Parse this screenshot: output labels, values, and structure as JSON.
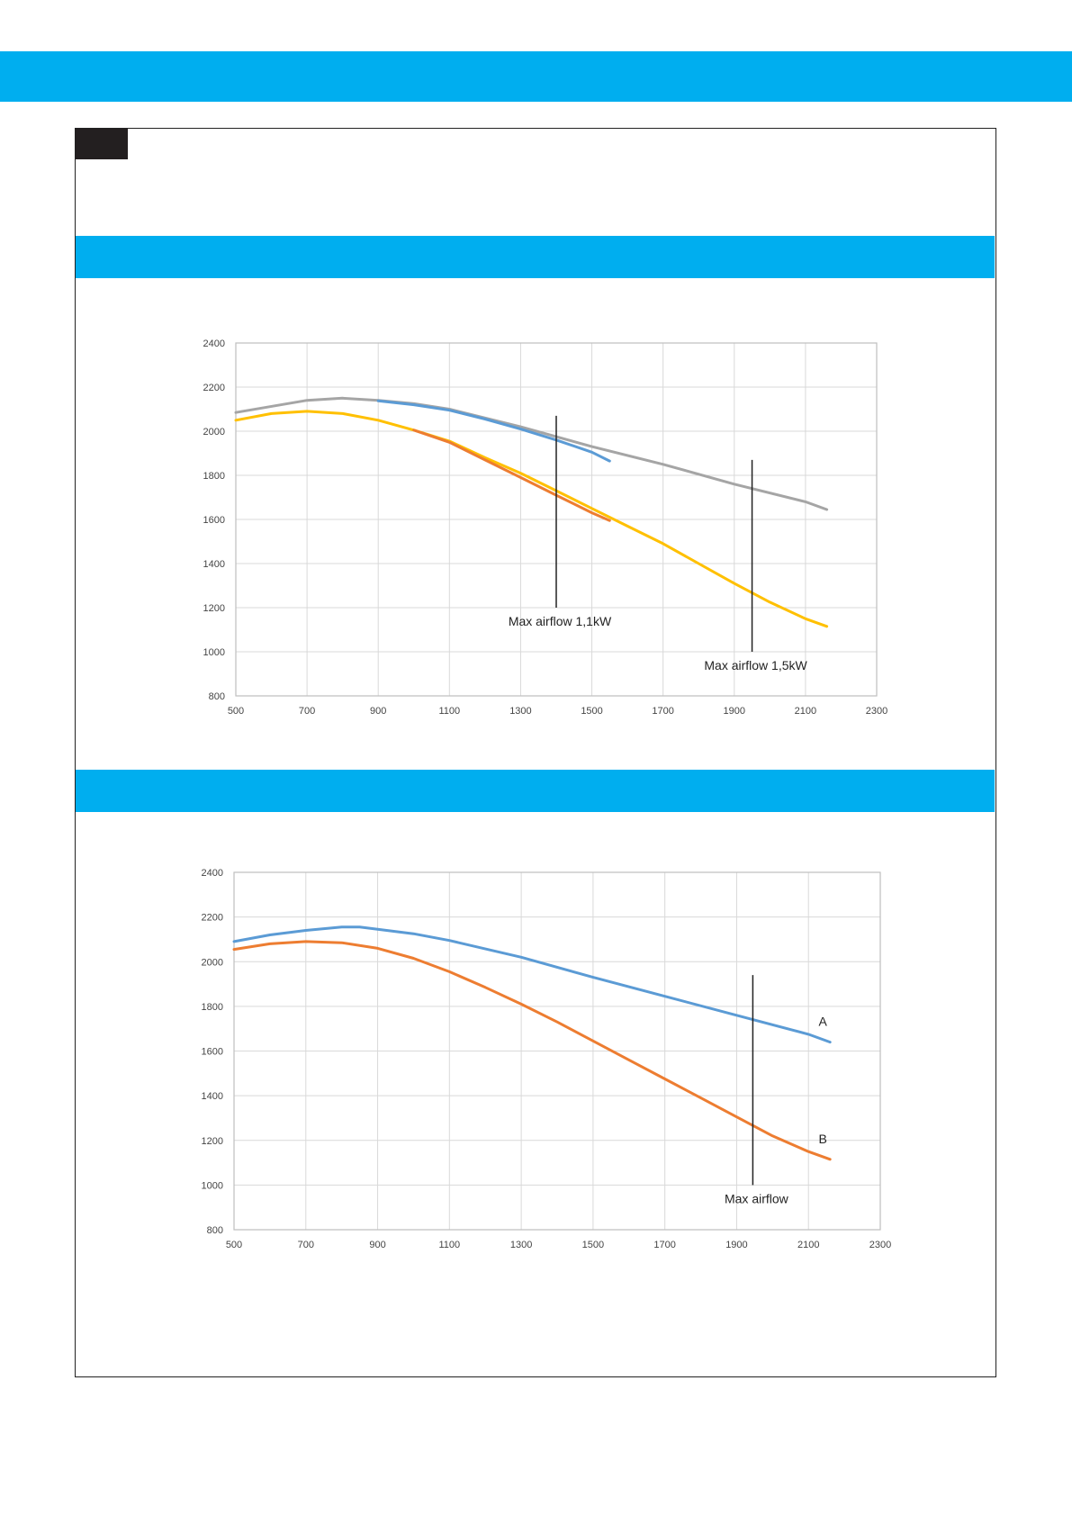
{
  "colors": {
    "accent": "#00aeef",
    "dark_tab": "#231f20",
    "grid": "#d9d9d9",
    "marker": "#222222"
  },
  "chart_data": [
    {
      "type": "line",
      "xlim": [
        500,
        2300
      ],
      "ylim": [
        800,
        2400
      ],
      "x_ticks": [
        "500",
        "700",
        "900",
        "1100",
        "1300",
        "1500",
        "1700",
        "1900",
        "2100",
        "2300"
      ],
      "y_ticks": [
        "2400",
        "2200",
        "2000",
        "1800",
        "1600",
        "1400",
        "1200",
        "1000",
        "800"
      ],
      "grid": true,
      "series": [
        {
          "color": "#a5a5a5",
          "points": [
            [
              500,
              2085
            ],
            [
              700,
              2140
            ],
            [
              800,
              2150
            ],
            [
              900,
              2140
            ],
            [
              1000,
              2125
            ],
            [
              1100,
              2100
            ],
            [
              1300,
              2020
            ],
            [
              1500,
              1930
            ],
            [
              1700,
              1850
            ],
            [
              1900,
              1760
            ],
            [
              2100,
              1680
            ],
            [
              2160,
              1645
            ]
          ]
        },
        {
          "color": "#5b9bd5",
          "points": [
            [
              900,
              2138
            ],
            [
              1000,
              2120
            ],
            [
              1100,
              2095
            ],
            [
              1200,
              2055
            ],
            [
              1300,
              2010
            ],
            [
              1400,
              1960
            ],
            [
              1500,
              1905
            ],
            [
              1550,
              1865
            ]
          ]
        },
        {
          "color": "#ffc000",
          "points": [
            [
              500,
              2050
            ],
            [
              600,
              2080
            ],
            [
              700,
              2090
            ],
            [
              800,
              2080
            ],
            [
              900,
              2050
            ],
            [
              1000,
              2005
            ],
            [
              1100,
              1955
            ],
            [
              1200,
              1880
            ],
            [
              1300,
              1810
            ],
            [
              1400,
              1730
            ],
            [
              1500,
              1650
            ],
            [
              1600,
              1570
            ],
            [
              1700,
              1490
            ],
            [
              1800,
              1400
            ],
            [
              1900,
              1310
            ],
            [
              2000,
              1225
            ],
            [
              2100,
              1150
            ],
            [
              2160,
              1115
            ]
          ]
        },
        {
          "color": "#ed7d31",
          "points": [
            [
              1000,
              2005
            ],
            [
              1100,
              1950
            ],
            [
              1200,
              1870
            ],
            [
              1300,
              1790
            ],
            [
              1400,
              1710
            ],
            [
              1500,
              1630
            ],
            [
              1550,
              1595
            ]
          ]
        }
      ],
      "annotations": [
        {
          "text": "Max airflow 1,1kW",
          "x": 1400,
          "y_from": 1200,
          "y_to": 2070
        },
        {
          "text": "Max airflow 1,5kW",
          "x": 1950,
          "y_from": 1000,
          "y_to": 1870
        }
      ]
    },
    {
      "type": "line",
      "xlim": [
        500,
        2300
      ],
      "ylim": [
        800,
        2400
      ],
      "x_ticks": [
        "500",
        "700",
        "900",
        "1100",
        "1300",
        "1500",
        "1700",
        "1900",
        "2100",
        "2300"
      ],
      "y_ticks": [
        "2400",
        "2200",
        "2000",
        "1800",
        "1600",
        "1400",
        "1200",
        "1000",
        "800"
      ],
      "grid": true,
      "series": [
        {
          "name": "A",
          "color": "#5b9bd5",
          "points": [
            [
              500,
              2090
            ],
            [
              600,
              2120
            ],
            [
              700,
              2140
            ],
            [
              800,
              2155
            ],
            [
              850,
              2155
            ],
            [
              900,
              2145
            ],
            [
              1000,
              2125
            ],
            [
              1100,
              2095
            ],
            [
              1300,
              2020
            ],
            [
              1500,
              1930
            ],
            [
              1700,
              1845
            ],
            [
              1900,
              1760
            ],
            [
              2100,
              1675
            ],
            [
              2160,
              1640
            ]
          ]
        },
        {
          "name": "B",
          "color": "#ed7d31",
          "points": [
            [
              500,
              2055
            ],
            [
              600,
              2080
            ],
            [
              700,
              2090
            ],
            [
              800,
              2085
            ],
            [
              900,
              2060
            ],
            [
              1000,
              2015
            ],
            [
              1100,
              1955
            ],
            [
              1200,
              1885
            ],
            [
              1300,
              1810
            ],
            [
              1400,
              1730
            ],
            [
              1500,
              1645
            ],
            [
              1600,
              1560
            ],
            [
              1700,
              1475
            ],
            [
              1800,
              1390
            ],
            [
              1900,
              1305
            ],
            [
              2000,
              1220
            ],
            [
              2100,
              1150
            ],
            [
              2160,
              1115
            ]
          ]
        }
      ],
      "annotations": [
        {
          "text": "Max airflow",
          "x": 1945,
          "y_from": 1000,
          "y_to": 1940
        }
      ]
    }
  ]
}
